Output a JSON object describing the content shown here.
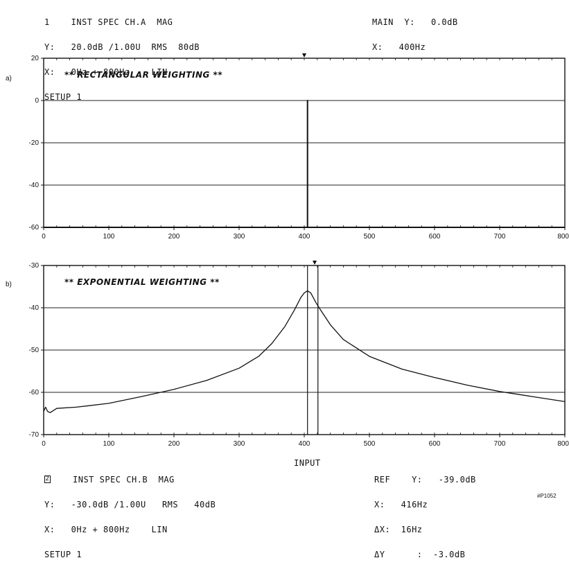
{
  "top_header": {
    "left": [
      "1    INST SPEC CH.A  MAG",
      "Y:   20.0dB /1.00U  RMS  80dB",
      "X:   0Hz + 800Hz    LIN",
      "SETUP 1"
    ],
    "right": [
      "MAIN  Y:   0.0dB",
      "X:   400Hz"
    ]
  },
  "bottom_header": {
    "box_char": "2",
    "left": [
      "INST SPEC CH.B  MAG",
      "Y:   -30.0dB /1.00U   RMS   40dB",
      "X:   0Hz + 800Hz    LIN",
      "SETUP 1"
    ],
    "middle": "INPUT",
    "right": [
      "REF    Y:   -39.0dB",
      "X:   416Hz",
      "ΔX:  16Hz",
      "ΔY      :  -3.0dB"
    ]
  },
  "figure_note": "#P1052",
  "chart_data": [
    {
      "type": "line",
      "panel_label": "a)",
      "title": "** RECTANGULAR WEIGHTING **",
      "xlim": [
        0,
        800
      ],
      "ylim": [
        -60,
        20
      ],
      "x_ticks": [
        0,
        100,
        200,
        300,
        400,
        500,
        600,
        700,
        800
      ],
      "y_ticks": [
        20,
        0,
        -20,
        -40,
        -60
      ],
      "grid": true,
      "series": [
        {
          "x": [
            0,
            405,
            405,
            405,
            405,
            405,
            800
          ],
          "y": [
            -60,
            -60,
            0,
            -60,
            0,
            -60,
            -60
          ]
        }
      ],
      "markers": [
        {
          "x": 400
        }
      ]
    },
    {
      "type": "line",
      "panel_label": "b)",
      "title": "** EXPONENTIAL WEIGHTING **",
      "xlim": [
        0,
        800
      ],
      "ylim": [
        -70,
        -30
      ],
      "x_ticks": [
        0,
        100,
        200,
        300,
        400,
        500,
        600,
        700,
        800
      ],
      "y_ticks": [
        -30,
        -40,
        -50,
        -60,
        -70
      ],
      "grid": true,
      "series": [
        {
          "x": [
            0,
            3,
            6,
            10,
            20,
            50,
            100,
            150,
            200,
            250,
            300,
            330,
            350,
            370,
            385,
            395,
            400,
            405,
            410,
            418,
            425,
            440,
            460,
            500,
            550,
            600,
            650,
            700,
            750,
            800
          ],
          "y": [
            -64.5,
            -63.5,
            -64.5,
            -64.8,
            -63.8,
            -63.5,
            -62.6,
            -61.0,
            -59.3,
            -57.2,
            -54.3,
            -51.5,
            -48.5,
            -44.5,
            -40.5,
            -37.5,
            -36.5,
            -36.0,
            -36.5,
            -38.8,
            -40.5,
            -44.0,
            -47.5,
            -51.5,
            -54.5,
            -56.5,
            -58.3,
            -59.8,
            -61.0,
            -62.2
          ]
        }
      ],
      "cursors": [
        {
          "x": 405
        },
        {
          "x": 421
        }
      ],
      "markers": [
        {
          "x": 416
        }
      ]
    }
  ]
}
